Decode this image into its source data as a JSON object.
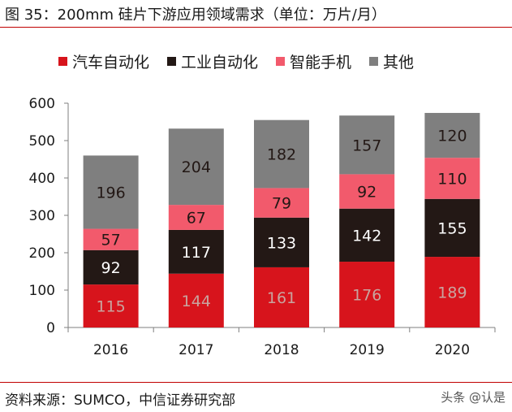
{
  "figure": {
    "title": "图 35：200mm 硅片下游应用领域需求（单位：万片/月）",
    "source": "资料来源：SUMCO，中信证券研究部",
    "watermark": "头条 @认是"
  },
  "chart_data": {
    "type": "bar",
    "stacked": true,
    "categories": [
      "2016",
      "2017",
      "2018",
      "2019",
      "2020"
    ],
    "series": [
      {
        "name": "汽车自动化",
        "color": "#d7141c",
        "label_color": "#c9a49f",
        "values": [
          115,
          144,
          161,
          176,
          189
        ]
      },
      {
        "name": "工业自动化",
        "color": "#231815",
        "label_color": "#ffffff",
        "values": [
          92,
          117,
          133,
          142,
          155
        ]
      },
      {
        "name": "智能手机",
        "color": "#f25a6c",
        "label_color": "#231815",
        "values": [
          57,
          67,
          79,
          92,
          110
        ]
      },
      {
        "name": "其他",
        "color": "#7f7f7f",
        "label_color": "#231815",
        "values": [
          196,
          204,
          182,
          157,
          120
        ]
      }
    ],
    "ylim": [
      0,
      600
    ],
    "yticks": [
      "0",
      "100",
      "200",
      "300",
      "400",
      "500",
      "600"
    ],
    "grid": false,
    "legend": "top",
    "xlabel": "",
    "ylabel": ""
  }
}
